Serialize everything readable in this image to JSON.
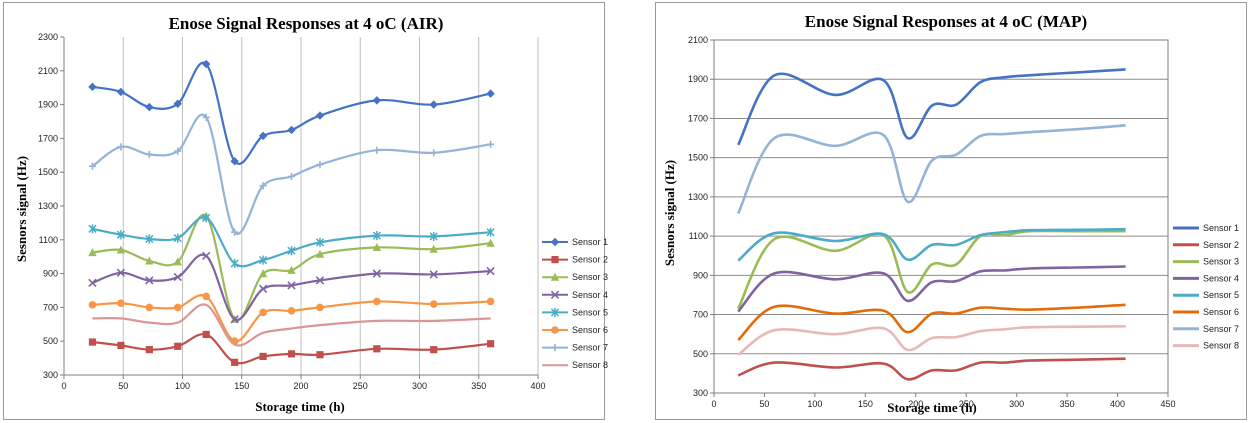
{
  "chart_data": [
    {
      "type": "line",
      "title": "Enose Signal Responses at 4 oC (AIR)",
      "xlabel": "Storage time (h)",
      "ylabel": "Sesnors signal (Hz)",
      "xlim": [
        0,
        400
      ],
      "ylim": [
        300,
        2300
      ],
      "xticks": [
        0,
        50,
        100,
        150,
        200,
        250,
        300,
        350,
        400
      ],
      "yticks": [
        300,
        500,
        700,
        900,
        1100,
        1300,
        1500,
        1700,
        1900,
        2100,
        2300
      ],
      "grid": "vertical",
      "markers": true,
      "legend_position": "right",
      "x": [
        24,
        48,
        72,
        96,
        120,
        144,
        168,
        192,
        216,
        264,
        312,
        360
      ],
      "series": [
        {
          "name": "Sensor 1",
          "color": "#4472c4",
          "marker": "diamond",
          "values": [
            2005,
            1975,
            1885,
            1905,
            2140,
            1565,
            1715,
            1750,
            1835,
            1925,
            1900,
            1965
          ]
        },
        {
          "name": "Sensor 2",
          "color": "#c0504d",
          "marker": "square",
          "values": [
            495,
            475,
            450,
            470,
            540,
            375,
            410,
            425,
            420,
            455,
            450,
            485
          ]
        },
        {
          "name": "Sensor 3",
          "color": "#9bbb59",
          "marker": "triangle",
          "values": [
            1025,
            1040,
            975,
            970,
            1240,
            630,
            900,
            920,
            1015,
            1055,
            1045,
            1080
          ]
        },
        {
          "name": "Sensor 4",
          "color": "#8064a2",
          "marker": "x",
          "values": [
            845,
            905,
            860,
            880,
            1005,
            630,
            810,
            830,
            860,
            900,
            895,
            915
          ]
        },
        {
          "name": "Sensor 5",
          "color": "#4bacc6",
          "marker": "star",
          "values": [
            1165,
            1130,
            1105,
            1110,
            1230,
            960,
            980,
            1035,
            1085,
            1125,
            1120,
            1145
          ]
        },
        {
          "name": "Sensor 6",
          "color": "#f79646",
          "marker": "circle",
          "values": [
            715,
            725,
            700,
            700,
            765,
            500,
            670,
            680,
            700,
            735,
            720,
            735
          ]
        },
        {
          "name": "Sensor 7",
          "color": "#95b3d7",
          "marker": "plus",
          "values": [
            1535,
            1650,
            1605,
            1625,
            1825,
            1145,
            1420,
            1475,
            1545,
            1630,
            1615,
            1665
          ]
        },
        {
          "name": "Sensor 8",
          "color": "#d99694",
          "marker": "none",
          "values": [
            635,
            635,
            610,
            610,
            715,
            480,
            550,
            575,
            595,
            620,
            620,
            635
          ]
        }
      ]
    },
    {
      "type": "line",
      "title": "Enose Signal Responses at 4 oC (MAP)",
      "xlabel": "Storage time (h)",
      "ylabel": "Sesnors signal (Hz)",
      "xlim": [
        0,
        450
      ],
      "ylim": [
        300,
        2100
      ],
      "xticks": [
        0,
        50,
        100,
        150,
        200,
        250,
        300,
        350,
        400,
        450
      ],
      "yticks": [
        300,
        500,
        700,
        900,
        1100,
        1300,
        1500,
        1700,
        1900,
        2100
      ],
      "grid": "horizontal",
      "markers": false,
      "legend_position": "right",
      "x": [
        24,
        60,
        120,
        168,
        192,
        216,
        240,
        264,
        288,
        312,
        360,
        408
      ],
      "series": [
        {
          "name": "Sensor 1",
          "color": "#4472c4",
          "values": [
            1565,
            1920,
            1820,
            1895,
            1600,
            1765,
            1770,
            1885,
            1910,
            1920,
            1935,
            1950
          ]
        },
        {
          "name": "Sensor 2",
          "color": "#c0504d",
          "values": [
            390,
            455,
            430,
            450,
            370,
            415,
            415,
            455,
            455,
            465,
            470,
            475
          ]
        },
        {
          "name": "Sensor 3",
          "color": "#9bbb59",
          "values": [
            730,
            1085,
            1025,
            1105,
            815,
            955,
            955,
            1100,
            1105,
            1125,
            1125,
            1125
          ]
        },
        {
          "name": "Sensor 4",
          "color": "#8064a2",
          "values": [
            715,
            910,
            880,
            910,
            770,
            865,
            870,
            920,
            925,
            935,
            940,
            945
          ]
        },
        {
          "name": "Sensor 5",
          "color": "#4bacc6",
          "values": [
            975,
            1115,
            1075,
            1110,
            980,
            1055,
            1055,
            1105,
            1120,
            1130,
            1132,
            1135
          ]
        },
        {
          "name": "Sensor 6",
          "color": "#e36c09",
          "values": [
            570,
            740,
            705,
            720,
            610,
            705,
            705,
            735,
            730,
            725,
            735,
            750
          ]
        },
        {
          "name": "Sensor 7",
          "color": "#95b3d7",
          "values": [
            1215,
            1600,
            1560,
            1615,
            1275,
            1485,
            1515,
            1610,
            1620,
            1630,
            1645,
            1665
          ]
        },
        {
          "name": "Sensor 8",
          "color": "#e6b9b8",
          "values": [
            495,
            620,
            600,
            630,
            520,
            580,
            585,
            615,
            625,
            635,
            638,
            640
          ]
        }
      ]
    }
  ]
}
